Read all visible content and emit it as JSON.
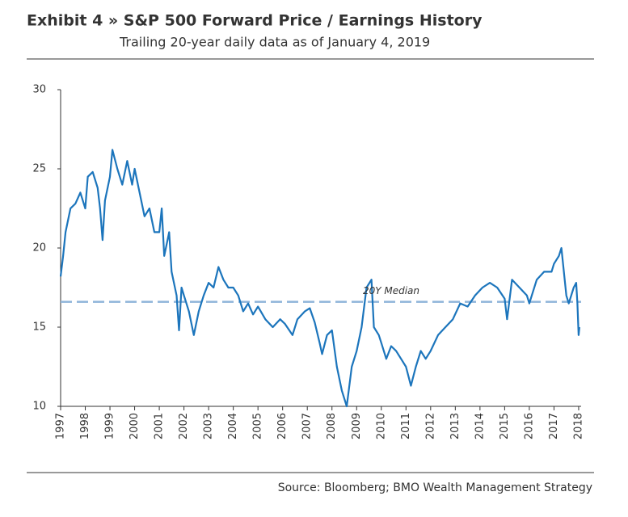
{
  "chart_data": {
    "type": "line",
    "title": "Exhibit 4 » S&P 500 Forward Price / Earnings History",
    "subtitle": "Trailing 20-year daily data as of January 4, 2019",
    "source": "Source: Bloomberg; BMO Wealth Management Strategy",
    "x": [
      1997.0,
      1997.1,
      1997.2,
      1997.4,
      1997.6,
      1997.8,
      1998.0,
      1998.1,
      1998.3,
      1998.5,
      1998.6,
      1998.7,
      1998.8,
      1999.0,
      1999.1,
      1999.3,
      1999.5,
      1999.7,
      1999.9,
      2000.0,
      2000.2,
      2000.4,
      2000.6,
      2000.8,
      2001.0,
      2001.1,
      2001.2,
      2001.4,
      2001.5,
      2001.7,
      2001.8,
      2001.9,
      2002.0,
      2002.2,
      2002.4,
      2002.6,
      2002.8,
      2003.0,
      2003.2,
      2003.4,
      2003.6,
      2003.8,
      2004.0,
      2004.2,
      2004.4,
      2004.6,
      2004.8,
      2005.0,
      2005.3,
      2005.6,
      2005.9,
      2006.1,
      2006.4,
      2006.6,
      2006.9,
      2007.1,
      2007.3,
      2007.5,
      2007.6,
      2007.8,
      2008.0,
      2008.2,
      2008.4,
      2008.6,
      2008.8,
      2009.0,
      2009.2,
      2009.4,
      2009.6,
      2009.7,
      2009.9,
      2010.0,
      2010.2,
      2010.4,
      2010.6,
      2010.8,
      2011.0,
      2011.2,
      2011.4,
      2011.6,
      2011.8,
      2012.0,
      2012.3,
      2012.6,
      2012.9,
      2013.2,
      2013.5,
      2013.8,
      2014.1,
      2014.4,
      2014.7,
      2015.0,
      2015.1,
      2015.3,
      2015.6,
      2015.9,
      2016.0,
      2016.3,
      2016.6,
      2016.9,
      2017.0,
      2017.2,
      2017.3,
      2017.5,
      2017.6,
      2017.8,
      2017.9,
      2017.95,
      2018.0,
      2018.03
    ],
    "series": [
      {
        "color": "#1c75bc",
        "values": [
          18.2,
          19.5,
          21,
          22.5,
          22.8,
          23.5,
          22.5,
          24.5,
          24.8,
          23.8,
          22.5,
          20.5,
          23,
          24.5,
          26.2,
          25,
          24,
          25.5,
          24,
          25,
          23.5,
          22,
          22.5,
          21,
          21,
          22.5,
          19.5,
          21,
          18.5,
          17,
          14.8,
          17.5,
          17,
          16,
          14.5,
          16,
          17,
          17.8,
          17.5,
          18.8,
          18,
          17.5,
          17.5,
          17,
          16,
          16.5,
          15.8,
          16.3,
          15.5,
          15,
          15.5,
          15.2,
          14.5,
          15.5,
          16,
          16.2,
          15.3,
          14,
          13.3,
          14.5,
          14.8,
          12.5,
          11,
          10,
          12.5,
          13.5,
          15,
          17.5,
          18,
          15,
          14.5,
          14,
          13,
          13.8,
          13.5,
          13,
          12.5,
          11.3,
          12.5,
          13.5,
          13,
          13.5,
          14.5,
          15,
          15.5,
          16.5,
          16.3,
          17,
          17.5,
          17.8,
          17.5,
          16.8,
          15.5,
          18,
          17.5,
          17,
          16.5,
          18,
          18.5,
          18.5,
          19,
          19.5,
          20,
          17,
          16.5,
          17.5,
          17.8,
          16.5,
          14.5,
          15
        ]
      }
    ],
    "median": {
      "value": 16.6,
      "label": "20Y Median",
      "color": "#8fb4d9"
    },
    "xlim": [
      1997,
      2018.1
    ],
    "xticks": [
      1997,
      1998,
      1999,
      2000,
      2001,
      2002,
      2003,
      2004,
      2005,
      2006,
      2007,
      2008,
      2009,
      2010,
      2011,
      2012,
      2013,
      2014,
      2015,
      2016,
      2017,
      2018
    ],
    "ylim": [
      10,
      30
    ],
    "yticks": [
      10,
      15,
      20,
      25,
      30
    ]
  }
}
